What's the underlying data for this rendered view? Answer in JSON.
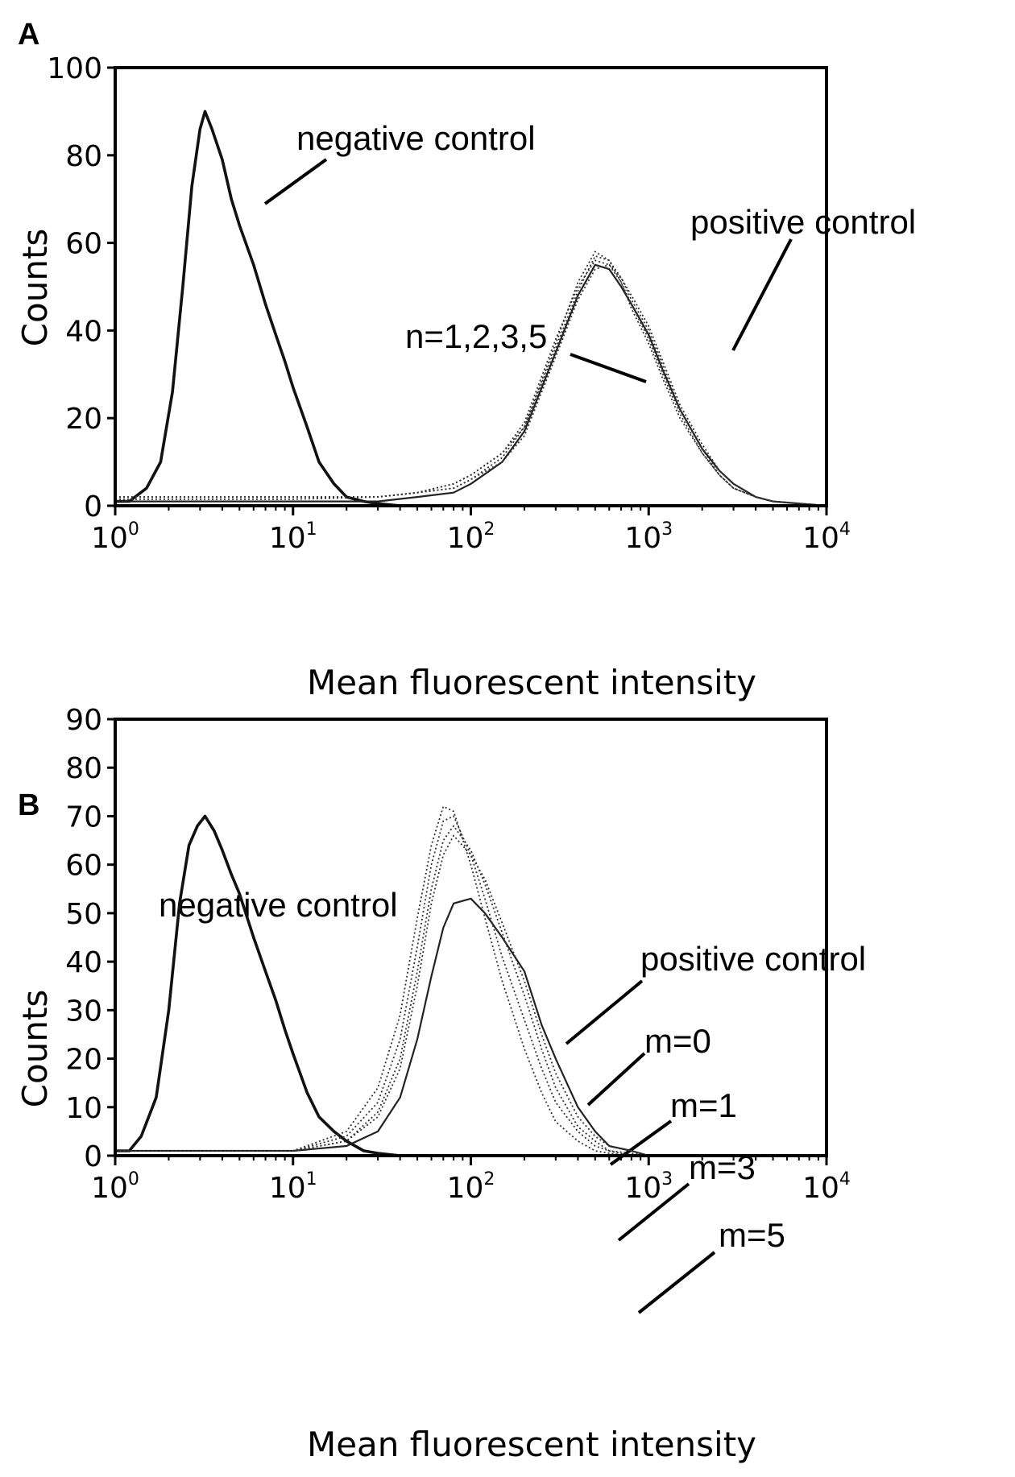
{
  "chart_data": [
    {
      "panel": "A",
      "type": "line",
      "x_scale": "log",
      "xlim": [
        1,
        10000
      ],
      "ylim": [
        0,
        100
      ],
      "xticks": [
        1,
        10,
        100,
        1000,
        10000
      ],
      "xtick_labels": [
        {
          "base": "10",
          "exp": "0"
        },
        {
          "base": "10",
          "exp": "1"
        },
        {
          "base": "10",
          "exp": "2"
        },
        {
          "base": "10",
          "exp": "3"
        },
        {
          "base": "10",
          "exp": "4"
        }
      ],
      "yticks": [
        0,
        20,
        40,
        60,
        80,
        100
      ],
      "xlabel": "Mean fluorescent intensity",
      "ylabel": "Counts",
      "grid": false,
      "annotations": [
        "negative control",
        "positive control",
        "n=1,2,3,5"
      ],
      "series": [
        {
          "name": "negative control",
          "style": "solid-thick",
          "x": [
            1,
            1.2,
            1.5,
            1.8,
            2.1,
            2.4,
            2.7,
            3.0,
            3.2,
            3.5,
            4.0,
            4.5,
            5.0,
            6.0,
            7.0,
            8.0,
            9.0,
            10,
            12,
            14,
            17,
            20,
            25,
            30,
            40
          ],
          "y": [
            1,
            1,
            4,
            10,
            26,
            50,
            73,
            86,
            90,
            86,
            79,
            70,
            64,
            55,
            46,
            39,
            33,
            27,
            18,
            10,
            5,
            2,
            1,
            0.5,
            0
          ]
        },
        {
          "name": "positive control",
          "style": "solid",
          "x": [
            1,
            10,
            30,
            50,
            80,
            100,
            150,
            200,
            300,
            400,
            500,
            600,
            700,
            800,
            1000,
            1200,
            1500,
            2000,
            2500,
            3000,
            4000,
            5000,
            10000
          ],
          "y": [
            1,
            1,
            1,
            2,
            3,
            5,
            10,
            17,
            35,
            48,
            55,
            54,
            50,
            46,
            39,
            31,
            22,
            13,
            8,
            5,
            2,
            1,
            0
          ]
        },
        {
          "name": "n=1",
          "style": "dotted",
          "x": [
            1,
            10,
            30,
            50,
            80,
            100,
            150,
            200,
            300,
            400,
            500,
            600,
            700,
            800,
            1000,
            1200,
            1500,
            2000,
            2500,
            3000,
            4000,
            5000,
            10000
          ],
          "y": [
            2,
            2,
            2,
            3,
            5,
            7,
            12,
            19,
            38,
            50,
            56,
            55,
            51,
            46,
            38,
            30,
            21,
            12,
            7,
            4,
            2,
            1,
            0
          ]
        },
        {
          "name": "n=2",
          "style": "dotted",
          "x": [
            1,
            10,
            30,
            50,
            80,
            100,
            150,
            200,
            300,
            400,
            500,
            600,
            700,
            800,
            1000,
            1200,
            1500,
            2000,
            2500,
            3000,
            4000,
            5000,
            10000
          ],
          "y": [
            1.5,
            1.5,
            2,
            3,
            4,
            6,
            11,
            18,
            36,
            49,
            57,
            56,
            52,
            47,
            40,
            32,
            22,
            13,
            7,
            4,
            2,
            1,
            0
          ]
        },
        {
          "name": "n=3",
          "style": "dotted",
          "x": [
            1,
            10,
            30,
            50,
            80,
            100,
            150,
            200,
            300,
            400,
            500,
            600,
            700,
            800,
            1000,
            1200,
            1500,
            2000,
            2500,
            3000,
            4000,
            5000,
            10000
          ],
          "y": [
            2,
            2,
            2,
            3,
            4,
            6,
            10,
            16,
            34,
            47,
            54,
            55,
            52,
            48,
            41,
            33,
            23,
            14,
            8,
            5,
            2,
            1,
            0
          ]
        },
        {
          "name": "n=5",
          "style": "dotted",
          "x": [
            1,
            10,
            30,
            50,
            80,
            100,
            150,
            200,
            300,
            400,
            500,
            600,
            700,
            800,
            1000,
            1200,
            1500,
            2000,
            2500,
            3000,
            4000,
            5000,
            10000
          ],
          "y": [
            2,
            2,
            2,
            3,
            5,
            7,
            12,
            18,
            37,
            51,
            58,
            56,
            51,
            45,
            37,
            29,
            20,
            12,
            7,
            4,
            2,
            1,
            0
          ]
        }
      ]
    },
    {
      "panel": "B",
      "type": "line",
      "x_scale": "log",
      "xlim": [
        1,
        10000
      ],
      "ylim": [
        0,
        90
      ],
      "xticks": [
        1,
        10,
        100,
        1000,
        10000
      ],
      "xtick_labels": [
        {
          "base": "10",
          "exp": "0"
        },
        {
          "base": "10",
          "exp": "1"
        },
        {
          "base": "10",
          "exp": "2"
        },
        {
          "base": "10",
          "exp": "3"
        },
        {
          "base": "10",
          "exp": "4"
        }
      ],
      "yticks": [
        0,
        10,
        20,
        30,
        40,
        50,
        60,
        70,
        80,
        90
      ],
      "xlabel": "Mean fluorescent intensity",
      "ylabel": "Counts",
      "grid": false,
      "annotations": [
        "negative control",
        "positive control",
        "m=0",
        "m=1",
        "m=3",
        "m=5"
      ],
      "series": [
        {
          "name": "negative control",
          "style": "solid-thick",
          "x": [
            1,
            1.2,
            1.4,
            1.7,
            2.0,
            2.3,
            2.6,
            2.9,
            3.2,
            3.6,
            4.0,
            4.5,
            5.0,
            6.0,
            7.0,
            8.0,
            9.0,
            10,
            12,
            14,
            17,
            20,
            25,
            30,
            40
          ],
          "y": [
            1,
            1,
            4,
            12,
            30,
            52,
            64,
            68,
            70,
            67,
            63,
            58,
            54,
            45,
            38,
            32,
            26,
            21,
            13,
            8,
            5,
            3,
            1,
            0.5,
            0
          ]
        },
        {
          "name": "positive control",
          "style": "solid",
          "x": [
            1,
            10,
            20,
            30,
            40,
            50,
            60,
            70,
            80,
            100,
            120,
            150,
            200,
            250,
            300,
            400,
            500,
            600,
            800,
            1000
          ],
          "y": [
            1,
            1,
            2,
            5,
            12,
            24,
            37,
            47,
            52,
            53,
            50,
            45,
            38,
            27,
            20,
            10,
            5,
            2,
            1,
            0
          ]
        },
        {
          "name": "m=0",
          "style": "dotted",
          "x": [
            1,
            10,
            20,
            30,
            40,
            50,
            60,
            70,
            80,
            100,
            120,
            150,
            200,
            250,
            300,
            400,
            500,
            600,
            800,
            1000
          ],
          "y": [
            1,
            1,
            3,
            8,
            18,
            35,
            52,
            62,
            66,
            62,
            57,
            48,
            36,
            25,
            17,
            8,
            4,
            2,
            1,
            0
          ]
        },
        {
          "name": "m=1",
          "style": "dotted",
          "x": [
            1,
            10,
            20,
            30,
            40,
            50,
            60,
            70,
            80,
            100,
            120,
            150,
            200,
            250,
            300,
            400,
            500,
            600,
            800,
            1000
          ],
          "y": [
            1,
            1,
            3,
            9,
            20,
            38,
            55,
            65,
            68,
            63,
            56,
            46,
            33,
            22,
            14,
            6,
            3,
            1,
            0.5,
            0
          ]
        },
        {
          "name": "m=3",
          "style": "dotted",
          "x": [
            1,
            10,
            20,
            30,
            40,
            50,
            60,
            70,
            80,
            100,
            120,
            150,
            200,
            250,
            300,
            400,
            500,
            600,
            800,
            1000
          ],
          "y": [
            1,
            1,
            4,
            11,
            24,
            43,
            60,
            69,
            70,
            62,
            53,
            41,
            28,
            18,
            11,
            5,
            2,
            1,
            0,
            0
          ]
        },
        {
          "name": "m=5",
          "style": "dotted",
          "x": [
            1,
            10,
            20,
            30,
            40,
            50,
            60,
            70,
            80,
            100,
            120,
            150,
            200,
            250,
            300,
            400,
            500,
            600,
            800,
            1000
          ],
          "y": [
            1,
            1,
            5,
            14,
            29,
            49,
            64,
            72,
            71,
            60,
            49,
            36,
            22,
            13,
            7,
            3,
            1,
            0.5,
            0,
            0
          ]
        }
      ]
    }
  ]
}
